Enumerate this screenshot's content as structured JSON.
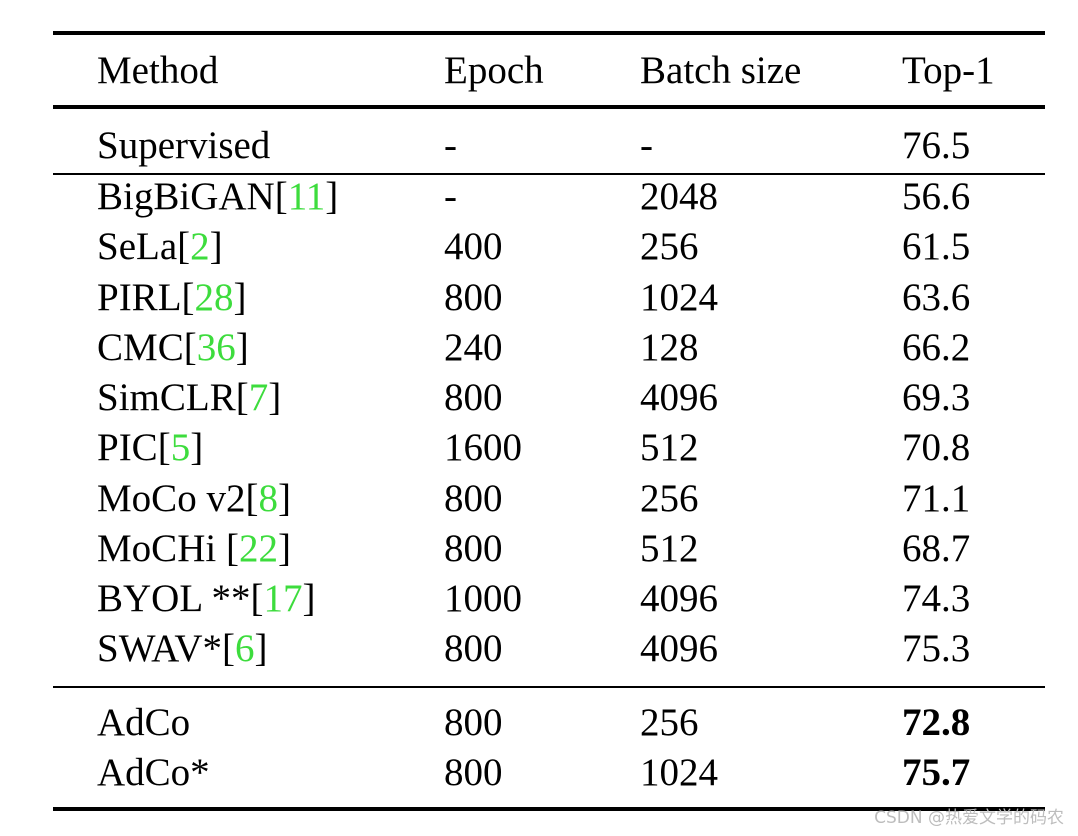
{
  "table": {
    "headers": [
      "Method",
      "Epoch",
      "Batch size",
      "Top-1"
    ],
    "rows": [
      {
        "method": "Supervised",
        "cite": "",
        "suffix": "",
        "epoch": "-",
        "batch": "-",
        "top1": "76.5",
        "bold": false
      },
      {
        "method": "BigBiGAN[",
        "cite": "11",
        "suffix": "]",
        "epoch": "-",
        "batch": "2048",
        "top1": "56.6",
        "bold": false
      },
      {
        "method": "SeLa[",
        "cite": "2",
        "suffix": "]",
        "epoch": "400",
        "batch": "256",
        "top1": "61.5",
        "bold": false
      },
      {
        "method": "PIRL[",
        "cite": "28",
        "suffix": "]",
        "epoch": "800",
        "batch": "1024",
        "top1": "63.6",
        "bold": false
      },
      {
        "method": "CMC[",
        "cite": "36",
        "suffix": "]",
        "epoch": "240",
        "batch": "128",
        "top1": "66.2",
        "bold": false
      },
      {
        "method": "SimCLR[",
        "cite": "7",
        "suffix": "]",
        "epoch": "800",
        "batch": "4096",
        "top1": "69.3",
        "bold": false
      },
      {
        "method": "PIC[",
        "cite": "5",
        "suffix": "]",
        "epoch": "1600",
        "batch": "512",
        "top1": "70.8",
        "bold": false
      },
      {
        "method": "MoCo v2[",
        "cite": "8",
        "suffix": "]",
        "epoch": "800",
        "batch": "256",
        "top1": "71.1",
        "bold": false
      },
      {
        "method": "MoCHi [",
        "cite": "22",
        "suffix": "]",
        "epoch": "800",
        "batch": "512",
        "top1": "68.7",
        "bold": false
      },
      {
        "method": "BYOL **[",
        "cite": "17",
        "suffix": "]",
        "epoch": "1000",
        "batch": "4096",
        "top1": "74.3",
        "bold": false
      },
      {
        "method": "SWAV*[",
        "cite": "6",
        "suffix": "]",
        "epoch": "800",
        "batch": "4096",
        "top1": "75.3",
        "bold": false
      },
      {
        "method": "AdCo",
        "cite": "",
        "suffix": "",
        "epoch": "800",
        "batch": "256",
        "top1": "72.8",
        "bold": true
      },
      {
        "method": "AdCo*",
        "cite": "",
        "suffix": "",
        "epoch": "800",
        "batch": "1024",
        "top1": "75.7",
        "bold": true
      }
    ]
  },
  "watermark": "CSDN @热爱文学的码农",
  "colors": {
    "citation": "#3ddc3d",
    "text": "#000000",
    "watermark": "#bdbdbd"
  }
}
